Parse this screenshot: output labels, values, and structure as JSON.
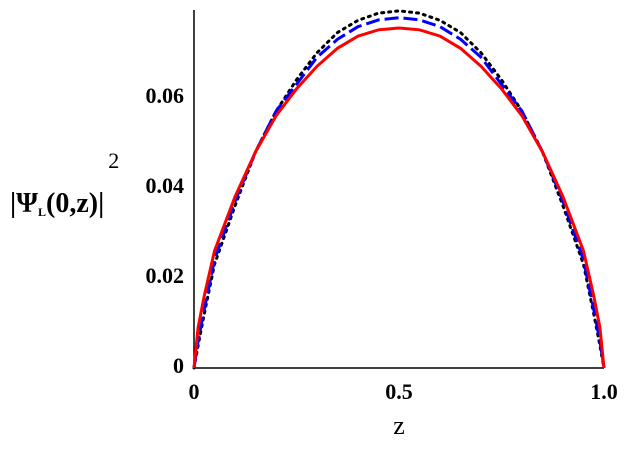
{
  "chart_data": {
    "type": "line",
    "x_label": "z",
    "y_label": {
      "main": "|Ψ",
      "sub": "L",
      "rest": "(0,z)|",
      "sup": "2"
    },
    "x": [
      0,
      0.01,
      0.025,
      0.05,
      0.1,
      0.15,
      0.2,
      0.25,
      0.3,
      0.35,
      0.4,
      0.45,
      0.5,
      0.55,
      0.6,
      0.65,
      0.7,
      0.75,
      0.8,
      0.85,
      0.9,
      0.95,
      0.975,
      0.99,
      1
    ],
    "series": [
      {
        "color": "#000000",
        "style": "dotted",
        "values": [
          0,
          0.005,
          0.012,
          0.023,
          0.036,
          0.048,
          0.057,
          0.064,
          0.07,
          0.0745,
          0.0772,
          0.0788,
          0.0793,
          0.0788,
          0.0772,
          0.0745,
          0.07,
          0.064,
          0.057,
          0.048,
          0.036,
          0.023,
          0.012,
          0.005,
          0
        ]
      },
      {
        "color": "#0000ff",
        "style": "dashed",
        "values": [
          0,
          0.006,
          0.013,
          0.024,
          0.037,
          0.048,
          0.057,
          0.063,
          0.069,
          0.073,
          0.0758,
          0.0773,
          0.0778,
          0.0773,
          0.0758,
          0.073,
          0.069,
          0.063,
          0.057,
          0.048,
          0.037,
          0.024,
          0.013,
          0.006,
          0
        ]
      },
      {
        "color": "#ff0000",
        "style": "solid",
        "values": [
          0,
          0.009,
          0.016,
          0.026,
          0.038,
          0.048,
          0.056,
          0.062,
          0.067,
          0.071,
          0.0737,
          0.0751,
          0.0755,
          0.0751,
          0.0737,
          0.071,
          0.067,
          0.062,
          0.056,
          0.048,
          0.038,
          0.026,
          0.016,
          0.009,
          0
        ]
      }
    ],
    "xlim": [
      0,
      1
    ],
    "ylim": [
      0,
      0.0795
    ],
    "xticks": [
      0,
      0.5,
      {
        "value": 1,
        "label": "1.0"
      }
    ],
    "yticks": [
      0,
      0.02,
      0.04,
      0.06
    ]
  }
}
